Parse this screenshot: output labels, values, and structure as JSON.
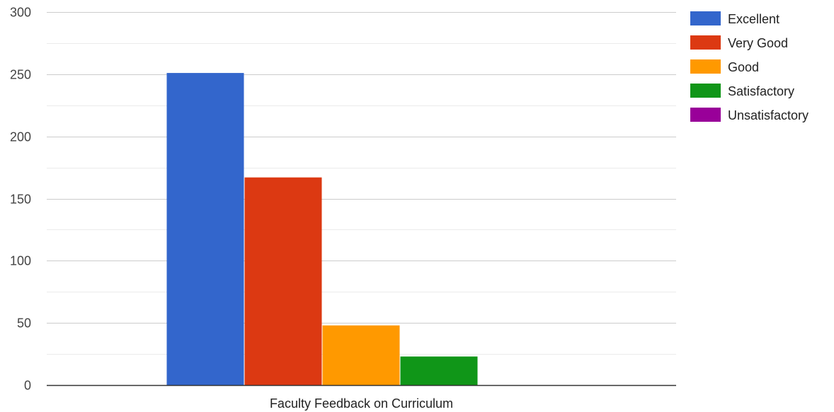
{
  "chart_data": {
    "type": "bar",
    "categories": [
      "Faculty Feedback on Curriculum"
    ],
    "series": [
      {
        "name": "Excellent",
        "values": [
          251
        ],
        "color": "#3366cc"
      },
      {
        "name": "Very Good",
        "values": [
          167
        ],
        "color": "#dc3912"
      },
      {
        "name": "Good",
        "values": [
          48
        ],
        "color": "#ff9900"
      },
      {
        "name": "Satisfactory",
        "values": [
          23
        ],
        "color": "#109618"
      },
      {
        "name": "Unsatisfactory",
        "values": [
          0
        ],
        "color": "#990099"
      }
    ],
    "title": "",
    "xlabel": "",
    "ylabel": "",
    "ylim": [
      0,
      300
    ],
    "yticks": [
      0,
      50,
      100,
      150,
      200,
      250,
      300
    ],
    "minor_gridlines": true,
    "grid": true,
    "legend_position": "right"
  }
}
